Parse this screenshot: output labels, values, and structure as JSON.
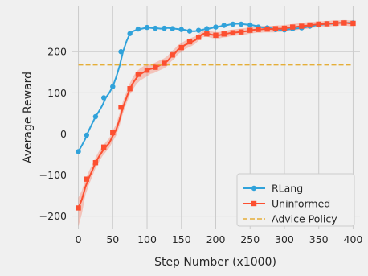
{
  "chart_data": {
    "type": "line",
    "title": "",
    "xlabel": "Step Number (x1000)",
    "ylabel": "Average Reward",
    "xlim": [
      -10,
      410
    ],
    "ylim": [
      -230,
      310
    ],
    "xticks": [
      0,
      50,
      100,
      150,
      200,
      250,
      300,
      350,
      400
    ],
    "yticks": [
      -200,
      -100,
      0,
      100,
      200
    ],
    "grid": true,
    "legend_position": "lower-right",
    "colors": {
      "figure_background": "#f0f0f0",
      "axes_background": "#f0f0f0",
      "grid": "#cbcbcb",
      "rlang": "#30a2da",
      "uninformed": "#fc4f30",
      "advice": "#e5ae38"
    },
    "series": [
      {
        "name": "RLang",
        "marker": "circle",
        "color": "#30a2da",
        "x": [
          0,
          5,
          10,
          15,
          20,
          25,
          30,
          35,
          40,
          45,
          50,
          55,
          60,
          65,
          70,
          75,
          80,
          85,
          90,
          95,
          100,
          105,
          110,
          115,
          120,
          125,
          130,
          135,
          140,
          145,
          150,
          155,
          160,
          165,
          170,
          175,
          180,
          185,
          190,
          195,
          200,
          205,
          210,
          215,
          220,
          225,
          230,
          235,
          240,
          245,
          250,
          255,
          260,
          265,
          270,
          275,
          280,
          285,
          290,
          295,
          300,
          305,
          310,
          315,
          320,
          325,
          330,
          335,
          340,
          345,
          350,
          355,
          360,
          365,
          370,
          375,
          380,
          385,
          390,
          395,
          400
        ],
        "y": [
          -43,
          -28,
          -12,
          8,
          25,
          42,
          55,
          70,
          88,
          100,
          115,
          138,
          165,
          200,
          225,
          244,
          250,
          253,
          255,
          257,
          259,
          258,
          257,
          257,
          256,
          257,
          258,
          257,
          256,
          255,
          254,
          253,
          251,
          250,
          250,
          252,
          253,
          255,
          256,
          258,
          260,
          261,
          263,
          264,
          266,
          267,
          268,
          268,
          267,
          266,
          265,
          264,
          262,
          260,
          259,
          258,
          257,
          255,
          254,
          253,
          253,
          254,
          255,
          256,
          257,
          258,
          259,
          261,
          262,
          264,
          265,
          266,
          267,
          268,
          268,
          269,
          270,
          270,
          270,
          270,
          270
        ],
        "markers_x": [
          0,
          12,
          25,
          37,
          50,
          62,
          75,
          87,
          100,
          112,
          125,
          137,
          150,
          162,
          175,
          187,
          200,
          212,
          225,
          237,
          250,
          262,
          275,
          287,
          300,
          312,
          325,
          337,
          350,
          362,
          375,
          387,
          400
        ],
        "markers_y": [
          -43,
          -3,
          42,
          88,
          115,
          200,
          244,
          255,
          259,
          257,
          257,
          256,
          254,
          250,
          252,
          256,
          260,
          264,
          267,
          267,
          265,
          260,
          258,
          254,
          253,
          256,
          258,
          262,
          265,
          268,
          269,
          270,
          270
        ]
      },
      {
        "name": "Uninformed",
        "marker": "square",
        "color": "#fc4f30",
        "x": [
          0,
          5,
          10,
          15,
          20,
          25,
          30,
          35,
          40,
          45,
          50,
          55,
          60,
          65,
          70,
          75,
          80,
          85,
          90,
          95,
          100,
          105,
          110,
          115,
          120,
          125,
          130,
          135,
          140,
          145,
          150,
          155,
          160,
          165,
          170,
          175,
          180,
          185,
          190,
          195,
          200,
          205,
          210,
          215,
          220,
          225,
          230,
          235,
          240,
          245,
          250,
          255,
          260,
          265,
          270,
          275,
          280,
          285,
          290,
          295,
          300,
          305,
          310,
          315,
          320,
          325,
          330,
          335,
          340,
          345,
          350,
          355,
          360,
          365,
          370,
          375,
          380,
          385,
          390,
          395,
          400
        ],
        "y": [
          -180,
          -160,
          -130,
          -108,
          -90,
          -70,
          -55,
          -42,
          -32,
          -22,
          -5,
          10,
          35,
          65,
          88,
          110,
          125,
          137,
          145,
          150,
          155,
          158,
          160,
          164,
          168,
          172,
          178,
          188,
          195,
          205,
          210,
          216,
          220,
          224,
          228,
          235,
          242,
          245,
          243,
          241,
          240,
          240,
          242,
          243,
          245,
          246,
          247,
          248,
          249,
          250,
          252,
          253,
          254,
          254,
          255,
          255,
          255,
          255,
          256,
          256,
          257,
          258,
          259,
          260,
          261,
          262,
          263,
          264,
          265,
          266,
          267,
          267,
          268,
          268,
          269,
          269,
          270,
          270,
          270,
          269,
          269
        ],
        "upper": [
          -155,
          -138,
          -112,
          -92,
          -75,
          -57,
          -42,
          -30,
          -20,
          -10,
          8,
          24,
          50,
          80,
          102,
          124,
          140,
          152,
          160,
          165,
          170,
          170,
          172,
          176,
          180,
          184,
          190,
          200,
          207,
          216,
          221,
          226,
          230,
          234,
          237,
          243,
          250,
          253,
          251,
          249,
          248,
          248,
          250,
          251,
          253,
          254,
          255,
          256,
          257,
          258,
          260,
          261,
          262,
          262,
          263,
          263,
          263,
          263,
          264,
          264,
          265,
          266,
          267,
          268,
          269,
          270,
          271,
          272,
          272,
          273,
          274,
          274,
          275,
          275,
          276,
          276,
          276,
          277,
          277,
          276,
          276
        ],
        "lower": [
          -225,
          -195,
          -150,
          -125,
          -105,
          -83,
          -68,
          -54,
          -44,
          -34,
          -18,
          -4,
          20,
          50,
          74,
          96,
          110,
          122,
          130,
          135,
          140,
          146,
          148,
          152,
          156,
          160,
          166,
          176,
          183,
          194,
          199,
          206,
          210,
          214,
          219,
          227,
          234,
          237,
          235,
          233,
          232,
          232,
          234,
          235,
          237,
          238,
          239,
          240,
          241,
          242,
          244,
          245,
          246,
          246,
          247,
          247,
          247,
          247,
          248,
          248,
          249,
          250,
          251,
          252,
          253,
          254,
          255,
          256,
          258,
          259,
          260,
          260,
          261,
          261,
          262,
          262,
          264,
          263,
          263,
          262,
          262
        ],
        "markers_x": [
          0,
          12,
          25,
          37,
          50,
          62,
          75,
          87,
          100,
          112,
          125,
          137,
          150,
          162,
          175,
          187,
          200,
          212,
          225,
          237,
          250,
          262,
          275,
          287,
          300,
          312,
          325,
          337,
          350,
          362,
          375,
          387,
          400
        ],
        "markers_y": [
          -180,
          -110,
          -70,
          -32,
          3,
          65,
          110,
          145,
          155,
          162,
          172,
          192,
          210,
          224,
          235,
          243,
          240,
          243,
          246,
          248,
          252,
          254,
          255,
          256,
          257,
          260,
          262,
          265,
          267,
          268,
          269,
          270,
          269
        ]
      },
      {
        "name": "Advice Policy",
        "marker": "none",
        "linestyle": "dashed",
        "color": "#e5ae38",
        "y_constant": 168
      }
    ]
  }
}
